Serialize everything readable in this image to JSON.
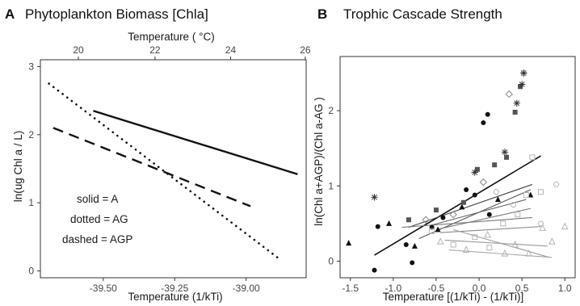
{
  "chart_data": [
    {
      "panel": "A",
      "title": "Phytoplankton Biomass [Chla]",
      "type": "line",
      "xlabel": "Temperature (1/kTi)",
      "xlim": [
        -39.72,
        -38.79
      ],
      "xticks": [
        -39.5,
        -39.25,
        -39.0
      ],
      "xtick_labels": [
        "-39.50",
        "-39.25",
        "-39.00"
      ],
      "top_xlabel": "Temperature ( °C)",
      "top_xticks": [
        20,
        22,
        24,
        26
      ],
      "top_tick_labels": [
        "20",
        "22",
        "24",
        "26"
      ],
      "ylabel": "ln(ug Chl a / L)",
      "ylim": [
        -0.1,
        3.1
      ],
      "yticks": [
        0,
        1,
        2,
        3
      ],
      "ytick_labels": [
        "0",
        "1",
        "2",
        "3"
      ],
      "grid": false,
      "annotations": [
        "solid = A",
        "dotted = AG",
        "dashed = AGP"
      ],
      "series": [
        {
          "style": "solid",
          "x": [
            -39.535,
            -38.82
          ],
          "y": [
            2.35,
            1.42
          ]
        },
        {
          "style": "dotted",
          "x": [
            -39.69,
            -38.885
          ],
          "y": [
            2.75,
            0.18
          ]
        },
        {
          "style": "dashed",
          "x": [
            -39.675,
            -38.985
          ],
          "y": [
            2.1,
            0.95
          ]
        }
      ]
    },
    {
      "panel": "B",
      "title": "Trophic Cascade Strength",
      "type": "scatter",
      "xlabel": "Temperature [(1/kTi) - (1/kTi)]",
      "xlim": [
        -1.62,
        1.12
      ],
      "xticks": [
        -1.5,
        -1.0,
        -0.5,
        0.0,
        0.5,
        1.0
      ],
      "xtick_labels": [
        "-1.5",
        "-1.0",
        "-0.5",
        "0.0",
        "0.5",
        "1.0"
      ],
      "ylabel": "ln(Chl a+AGP)/(Chl a-AG )",
      "ylim": [
        -0.22,
        2.72
      ],
      "yticks": [
        0,
        1,
        2
      ],
      "ytick_labels": [
        "0",
        "1",
        "2"
      ],
      "grid": false,
      "colors": {
        "black": "#111111",
        "dark_gray": "#555555",
        "mid_gray": "#888888",
        "light_gray": "#b5b5b5"
      },
      "points": [
        {
          "shape": "circle-filled",
          "color": "#111111",
          "x": [
            -1.22,
            -1.18,
            -0.85,
            -0.78,
            -0.55,
            -0.42,
            -0.15,
            -0.05,
            0.05,
            0.1,
            0.12
          ],
          "y": [
            -0.12,
            0.46,
            0.22,
            -0.02,
            0.45,
            0.58,
            0.95,
            0.88,
            1.84,
            1.95,
            0.62
          ]
        },
        {
          "shape": "triangle-filled",
          "color": "#111111",
          "x": [
            -1.52,
            -1.05,
            -0.75,
            -0.48,
            -0.2,
            0.22,
            0.6
          ],
          "y": [
            0.24,
            0.5,
            0.2,
            0.42,
            0.72,
            0.82,
            0.88
          ]
        },
        {
          "shape": "square-filled",
          "color": "#555555",
          "x": [
            -0.82,
            -0.5,
            -0.18,
            -0.02,
            0.18,
            0.32,
            0.42,
            0.48
          ],
          "y": [
            0.55,
            0.68,
            0.78,
            1.22,
            1.28,
            1.38,
            1.98,
            2.32
          ]
        },
        {
          "shape": "asterisk",
          "color": "#333333",
          "x": [
            -1.22,
            -0.05,
            0.3,
            0.44,
            0.5,
            0.52
          ],
          "y": [
            0.85,
            1.18,
            1.45,
            2.1,
            2.35,
            2.5
          ]
        },
        {
          "shape": "diamond-open",
          "color": "#888888",
          "x": [
            -0.62,
            -0.3,
            0.05,
            0.35,
            0.52
          ],
          "y": [
            0.55,
            0.62,
            1.05,
            2.22,
            2.5
          ]
        },
        {
          "shape": "square-open",
          "color": "#b5b5b5",
          "x": [
            -0.55,
            -0.3,
            -0.05,
            0.12,
            0.28,
            0.45,
            0.55,
            0.62,
            0.72
          ],
          "y": [
            0.4,
            0.22,
            0.32,
            0.18,
            0.5,
            0.62,
            0.88,
            1.38,
            0.92
          ]
        },
        {
          "shape": "triangle-open",
          "color": "#b5b5b5",
          "x": [
            -0.45,
            -0.15,
            0.1,
            0.3,
            0.42,
            0.58,
            0.74,
            0.85,
            1.0
          ],
          "y": [
            0.26,
            0.15,
            0.35,
            0.1,
            0.22,
            0.1,
            0.44,
            0.26,
            0.46
          ]
        },
        {
          "shape": "circle-open",
          "color": "#b5b5b5",
          "x": [
            0.2,
            0.4,
            0.72,
            0.9
          ],
          "y": [
            0.92,
            0.75,
            0.5,
            1.02
          ]
        }
      ],
      "fits": [
        {
          "color": "#111111",
          "width": 1.6,
          "x": [
            -1.22,
            0.72
          ],
          "y": [
            0.08,
            1.4
          ]
        },
        {
          "color": "#444444",
          "width": 1.1,
          "x": [
            -0.82,
            0.62
          ],
          "y": [
            0.45,
            1.02
          ]
        },
        {
          "color": "#555555",
          "width": 1.1,
          "x": [
            -0.7,
            0.6
          ],
          "y": [
            0.3,
            0.95
          ]
        },
        {
          "color": "#666666",
          "width": 1.1,
          "x": [
            -0.55,
            0.55
          ],
          "y": [
            0.48,
            0.82
          ]
        },
        {
          "color": "#777777",
          "width": 1.1,
          "x": [
            -0.5,
            0.6
          ],
          "y": [
            0.42,
            0.7
          ]
        },
        {
          "color": "#7a7a7a",
          "width": 1.1,
          "x": [
            -0.9,
            0.62
          ],
          "y": [
            0.45,
            0.58
          ]
        },
        {
          "color": "#8a8a8a",
          "width": 1.1,
          "x": [
            -0.45,
            0.72
          ],
          "y": [
            0.38,
            0.46
          ]
        },
        {
          "color": "#9a9a9a",
          "width": 1.1,
          "x": [
            -0.4,
            0.8
          ],
          "y": [
            0.28,
            0.2
          ]
        },
        {
          "color": "#a8a8a8",
          "width": 1.1,
          "x": [
            -0.35,
            0.85
          ],
          "y": [
            0.15,
            0.05
          ]
        },
        {
          "color": "#9e9e9e",
          "width": 1.1,
          "x": [
            -0.3,
            0.82
          ],
          "y": [
            0.42,
            0.05
          ]
        }
      ]
    }
  ]
}
